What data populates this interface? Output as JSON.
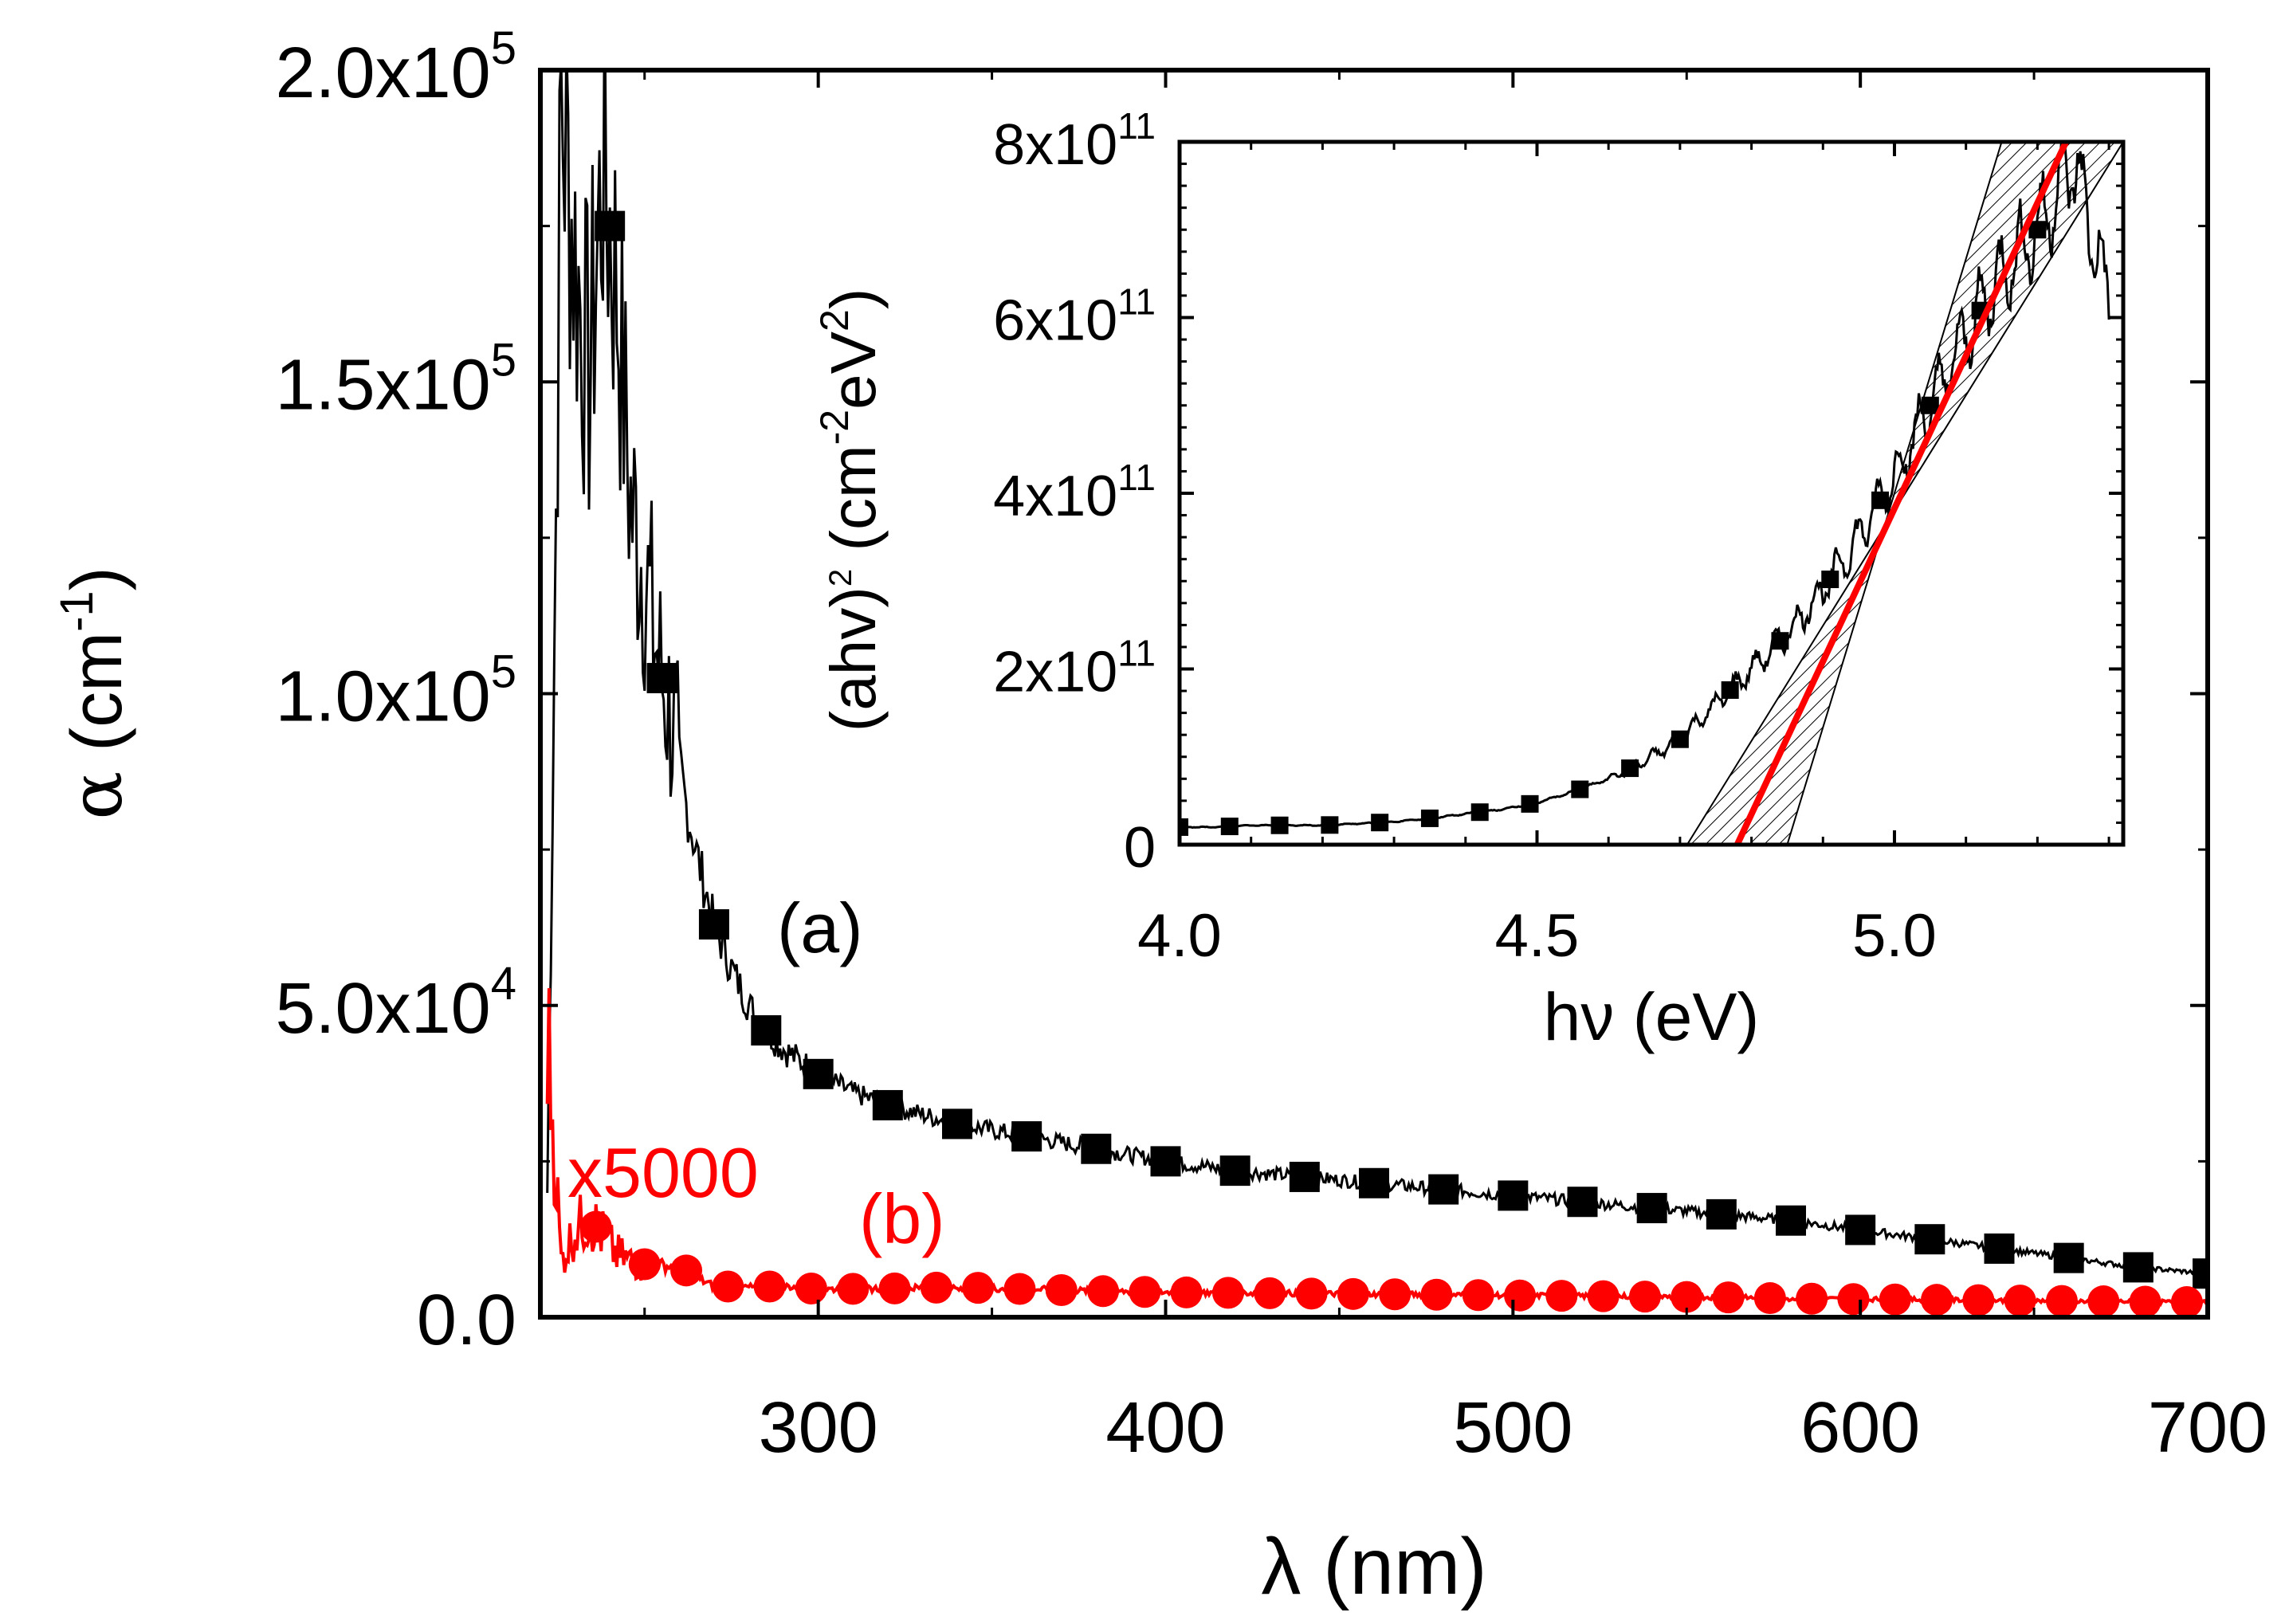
{
  "chart_data": [
    {
      "type": "line",
      "panel": "main",
      "xlabel": "λ (nm)",
      "ylabel": "α (cm-1)",
      "xlim": [
        220,
        700
      ],
      "ylim": [
        0,
        200000
      ],
      "x_ticks": [
        "300",
        "400",
        "500",
        "600",
        "700"
      ],
      "y_ticks": [
        {
          "mant": "0.0",
          "exp": ""
        },
        {
          "mant": "5.0x10",
          "exp": "4"
        },
        {
          "mant": "1.0x10",
          "exp": "5"
        },
        {
          "mant": "1.5x10",
          "exp": "5"
        },
        {
          "mant": "2.0x10",
          "exp": "5"
        }
      ],
      "y_tick_values": [
        0,
        50000,
        100000,
        150000,
        200000
      ],
      "grid": false,
      "annotations": {
        "a": "(a)",
        "b": "(b)",
        "scale": "x5000"
      },
      "series": [
        {
          "label": "(a)",
          "color": "#000000",
          "marker": "square",
          "x": [
            222,
            226,
            230,
            234,
            238,
            242,
            246,
            250,
            254,
            258,
            262,
            266,
            270,
            275,
            280,
            285,
            290,
            295,
            300,
            310,
            320,
            330,
            340,
            350,
            360,
            370,
            380,
            390,
            400,
            420,
            440,
            460,
            480,
            500,
            520,
            540,
            560,
            580,
            600,
            620,
            640,
            660,
            680,
            700
          ],
          "y": [
            20000,
            195000,
            170000,
            150000,
            185000,
            165000,
            130000,
            120000,
            105000,
            95000,
            82000,
            72000,
            63000,
            56000,
            50000,
            46000,
            43000,
            41000,
            39000,
            36000,
            34000,
            32500,
            31000,
            30000,
            29000,
            28000,
            27000,
            26000,
            25000,
            23500,
            22500,
            21500,
            20500,
            19500,
            18500,
            17500,
            16500,
            15500,
            14000,
            12500,
            11000,
            9500,
            8000,
            7000
          ]
        },
        {
          "label": "(b)",
          "color": "#ff0000",
          "marker": "circle",
          "x": [
            222,
            226,
            230,
            234,
            238,
            242,
            246,
            250,
            254,
            258,
            262,
            266,
            270,
            280,
            290,
            300,
            320,
            340,
            360,
            380,
            400,
            420,
            440,
            460,
            480,
            500,
            520,
            540,
            560,
            580,
            600,
            620,
            640,
            660,
            680,
            700
          ],
          "y": [
            46000,
            9000,
            14000,
            16000,
            13000,
            10000,
            9000,
            8500,
            8500,
            8000,
            7500,
            6000,
            5000,
            4800,
            5000,
            4500,
            4600,
            4800,
            4500,
            4200,
            4000,
            3900,
            3800,
            3700,
            3600,
            3500,
            3400,
            3300,
            3200,
            3000,
            2900,
            2800,
            2700,
            2600,
            2500,
            2400
          ]
        }
      ]
    },
    {
      "type": "line",
      "panel": "inset",
      "xlabel": "hν (eV)",
      "ylabel": "(ahv)² (cm-2eV2)",
      "xlim": [
        4.0,
        5.32
      ],
      "ylim": [
        0,
        800000000000
      ],
      "x_ticks": [
        "4.0",
        "4.5",
        "5.0"
      ],
      "x_tick_values": [
        4.0,
        4.5,
        5.0
      ],
      "y_ticks": [
        {
          "mant": "0",
          "exp": ""
        },
        {
          "mant": "2x10",
          "exp": "11"
        },
        {
          "mant": "4x10",
          "exp": "11"
        },
        {
          "mant": "6x10",
          "exp": "11"
        },
        {
          "mant": "8x10",
          "exp": "11"
        }
      ],
      "y_tick_values": [
        0,
        200000000000,
        400000000000,
        600000000000,
        800000000000
      ],
      "grid": false,
      "series": [
        {
          "label": "data",
          "color": "#000000",
          "marker": "square",
          "x": [
            4.0,
            4.05,
            4.1,
            4.15,
            4.2,
            4.25,
            4.3,
            4.35,
            4.4,
            4.45,
            4.5,
            4.55,
            4.6,
            4.65,
            4.7,
            4.75,
            4.8,
            4.85,
            4.9,
            4.95,
            5.0,
            5.05,
            5.1,
            5.15,
            5.2,
            5.25,
            5.3
          ],
          "y": [
            20000000000,
            20000000000,
            22000000000,
            22000000000,
            22000000000,
            24000000000,
            26000000000,
            30000000000,
            35000000000,
            40000000000,
            48000000000,
            60000000000,
            75000000000,
            95000000000,
            120000000000,
            160000000000,
            200000000000,
            240000000000,
            290000000000,
            350000000000,
            420000000000,
            500000000000,
            580000000000,
            650000000000,
            700000000000,
            780000000000,
            620000000000
          ]
        },
        {
          "label": "fit",
          "color": "#ff0000",
          "x": [
            4.78,
            5.24
          ],
          "y": [
            0,
            800000000000
          ]
        },
        {
          "label": "fit-bound-lower",
          "color": "#000000",
          "x": [
            4.71,
            5.32
          ],
          "y": [
            0,
            800000000000
          ]
        },
        {
          "label": "fit-bound-upper",
          "color": "#000000",
          "x": [
            4.85,
            5.15
          ],
          "y": [
            0,
            800000000000
          ]
        }
      ]
    }
  ]
}
